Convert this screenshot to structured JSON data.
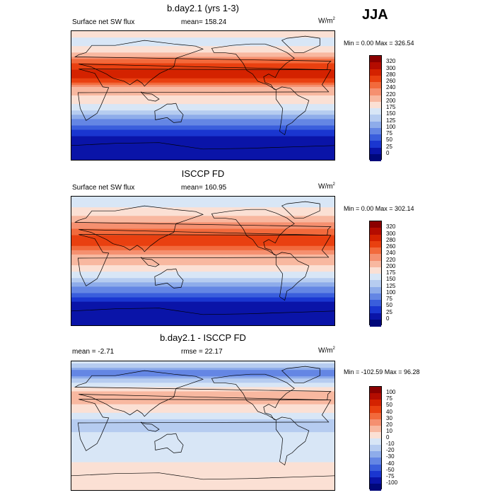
{
  "season": "JJA",
  "chart_data": [
    {
      "type": "heatmap",
      "title": "b.day2.1 (yrs 1-3)",
      "left_label": "Surface net SW flux",
      "center_label": "mean= 158.24",
      "units_base": "W/m",
      "units_exp": "2",
      "minmax": "Min =   0.00 Max = 326.54",
      "min": 0.0,
      "max": 326.54,
      "levels": [
        "320",
        "300",
        "280",
        "260",
        "240",
        "220",
        "200",
        "175",
        "150",
        "125",
        "100",
        "75",
        "50",
        "25",
        "0"
      ],
      "colors": [
        "#8b0000",
        "#b40c00",
        "#d42200",
        "#e94010",
        "#f26a3c",
        "#f59070",
        "#f8b8a0",
        "#fbe0d4",
        "#d8e6f6",
        "#b6ccf0",
        "#8eacea",
        "#6486e4",
        "#3a5edc",
        "#1a36d0",
        "#0a14a8",
        "#00087a"
      ],
      "zones": [
        {
          "lat": 90,
          "value": 200
        },
        {
          "lat": 75,
          "value": 150
        },
        {
          "lat": 60,
          "value": 200
        },
        {
          "lat": 45,
          "value": 260
        },
        {
          "lat": 30,
          "value": 290
        },
        {
          "lat": 20,
          "value": 270
        },
        {
          "lat": 10,
          "value": 210
        },
        {
          "lat": 0,
          "value": 200
        },
        {
          "lat": -10,
          "value": 180
        },
        {
          "lat": -20,
          "value": 150
        },
        {
          "lat": -30,
          "value": 115
        },
        {
          "lat": -40,
          "value": 80
        },
        {
          "lat": -50,
          "value": 45
        },
        {
          "lat": -60,
          "value": 15
        },
        {
          "lat": -75,
          "value": 0
        },
        {
          "lat": -90,
          "value": 0
        }
      ]
    },
    {
      "type": "heatmap",
      "title": "ISCCP FD",
      "left_label": "Surface net SW flux",
      "center_label": "mean= 160.95",
      "units_base": "W/m",
      "units_exp": "2",
      "minmax": "Min =   0.00 Max = 302.14",
      "min": 0.0,
      "max": 302.14,
      "levels": [
        "320",
        "300",
        "280",
        "260",
        "240",
        "220",
        "200",
        "175",
        "150",
        "125",
        "100",
        "75",
        "50",
        "25",
        "0"
      ],
      "colors": [
        "#8b0000",
        "#b40c00",
        "#d42200",
        "#e94010",
        "#f26a3c",
        "#f59070",
        "#f8b8a0",
        "#fbe0d4",
        "#d8e6f6",
        "#b6ccf0",
        "#8eacea",
        "#6486e4",
        "#3a5edc",
        "#1a36d0",
        "#0a14a8",
        "#00087a"
      ],
      "zones": [
        {
          "lat": 90,
          "value": 160
        },
        {
          "lat": 75,
          "value": 175
        },
        {
          "lat": 60,
          "value": 210
        },
        {
          "lat": 45,
          "value": 240
        },
        {
          "lat": 30,
          "value": 270
        },
        {
          "lat": 20,
          "value": 260
        },
        {
          "lat": 10,
          "value": 220
        },
        {
          "lat": 0,
          "value": 215
        },
        {
          "lat": -10,
          "value": 190
        },
        {
          "lat": -20,
          "value": 160
        },
        {
          "lat": -30,
          "value": 125
        },
        {
          "lat": -40,
          "value": 90
        },
        {
          "lat": -50,
          "value": 50
        },
        {
          "lat": -60,
          "value": 20
        },
        {
          "lat": -75,
          "value": 0
        },
        {
          "lat": -90,
          "value": 0
        }
      ]
    },
    {
      "type": "heatmap",
      "title": "b.day2.1 - ISCCP FD",
      "left_label": "mean =  -2.71",
      "center_label": "rmse =  22.17",
      "units_base": "W/m",
      "units_exp": "2",
      "minmax": "Min = -102.59 Max =  96.28",
      "min": -102.59,
      "max": 96.28,
      "levels": [
        "100",
        "75",
        "50",
        "40",
        "30",
        "20",
        "10",
        "0",
        "-10",
        "-20",
        "-30",
        "-40",
        "-50",
        "-75",
        "-100"
      ],
      "colors": [
        "#8b0000",
        "#b40c00",
        "#d42200",
        "#e94010",
        "#f26a3c",
        "#f59070",
        "#f8b8a0",
        "#fbe0d4",
        "#d8e6f6",
        "#b6ccf0",
        "#8eacea",
        "#6486e4",
        "#3a5edc",
        "#1a36d0",
        "#0a14a8",
        "#00087a"
      ],
      "zones": [
        {
          "lat": 90,
          "value": 0
        },
        {
          "lat": 75,
          "value": -40
        },
        {
          "lat": 60,
          "value": -10
        },
        {
          "lat": 45,
          "value": 15
        },
        {
          "lat": 30,
          "value": 10
        },
        {
          "lat": 20,
          "value": 5
        },
        {
          "lat": 10,
          "value": -10
        },
        {
          "lat": 0,
          "value": -15
        },
        {
          "lat": -10,
          "value": -10
        },
        {
          "lat": -20,
          "value": -5
        },
        {
          "lat": -30,
          "value": -10
        },
        {
          "lat": -40,
          "value": -5
        },
        {
          "lat": -50,
          "value": 0
        },
        {
          "lat": -60,
          "value": 0
        },
        {
          "lat": -75,
          "value": 0
        },
        {
          "lat": -90,
          "value": 0
        }
      ]
    }
  ]
}
